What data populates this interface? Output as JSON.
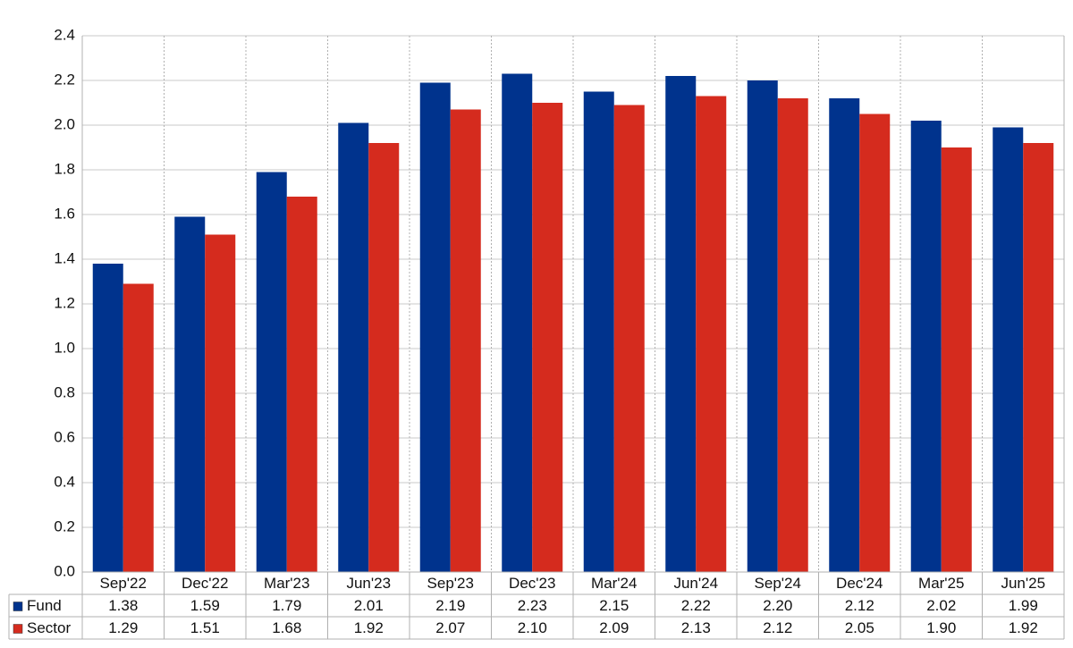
{
  "chart_data": {
    "type": "bar",
    "categories": [
      "Sep'22",
      "Dec'22",
      "Mar'23",
      "Jun'23",
      "Sep'23",
      "Dec'23",
      "Mar'24",
      "Jun'24",
      "Sep'24",
      "Dec'24",
      "Mar'25",
      "Jun'25"
    ],
    "series": [
      {
        "name": "Fund",
        "color": "#00338d",
        "values": [
          1.38,
          1.59,
          1.79,
          2.01,
          2.19,
          2.23,
          2.15,
          2.22,
          2.2,
          2.12,
          2.02,
          1.99
        ],
        "value_labels": [
          "1.38",
          "1.59",
          "1.79",
          "2.01",
          "2.19",
          "2.23",
          "2.15",
          "2.22",
          "2.20",
          "2.12",
          "2.02",
          "1.99"
        ]
      },
      {
        "name": "Sector",
        "color": "#d52b1e",
        "values": [
          1.29,
          1.51,
          1.68,
          1.92,
          2.07,
          2.1,
          2.09,
          2.13,
          2.12,
          2.05,
          1.9,
          1.92
        ],
        "value_labels": [
          "1.29",
          "1.51",
          "1.68",
          "1.92",
          "2.07",
          "2.10",
          "2.09",
          "2.13",
          "2.12",
          "2.05",
          "1.90",
          "1.92"
        ]
      }
    ],
    "ylim": [
      0,
      2.4
    ],
    "yticks": [
      {
        "value": 0,
        "label": "0.0"
      },
      0.2,
      0.4,
      0.6,
      0.8,
      {
        "value": 1,
        "label": "1.0"
      },
      1.2,
      1.4,
      1.6,
      1.8,
      {
        "value": 2,
        "label": "2.0"
      },
      2.2,
      2.4
    ],
    "grid": true
  }
}
